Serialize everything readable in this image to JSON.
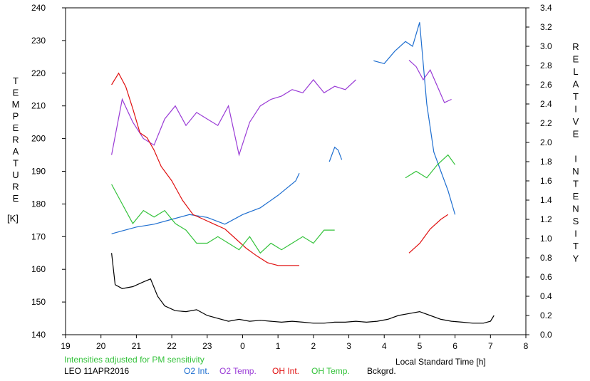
{
  "chart_data": {
    "type": "line",
    "left_axis_label": "TEMPERATURE",
    "left_axis_unit": "[K]",
    "right_axis_label": "RELATIVE INTENSITY",
    "xlabel": "Local Standard Time [h]",
    "note": "Intensities adjusted for PM sensitivity",
    "station_date": "LEO 11APR2016",
    "x_ticks": [
      "19",
      "21",
      "22",
      "23",
      "0",
      "1",
      "2",
      "3",
      "4",
      "5",
      "6",
      "7",
      "8"
    ],
    "x_range": [
      19,
      32
    ],
    "y_left_range": [
      140,
      240
    ],
    "y_left_ticks": [
      140,
      150,
      160,
      170,
      180,
      190,
      200,
      210,
      220,
      230,
      240
    ],
    "y_right_range": [
      0,
      3.4
    ],
    "y_right_ticks": [
      "0.0",
      "0.2",
      "0.4",
      "0.6",
      "0.8",
      "1.0",
      "1.2",
      "1.4",
      "1.6",
      "1.8",
      "2.0",
      "2.2",
      "2.4",
      "2.6",
      "2.8",
      "3.0",
      "3.2",
      "3.4"
    ],
    "grid": false,
    "series": [
      {
        "name": "O2 Int.",
        "axis": "right",
        "color": "#1f6fd0",
        "x": [
          20.3,
          20.6,
          21.0,
          21.5,
          22.0,
          22.5,
          23.0,
          23.5,
          24.0,
          24.5,
          25.0,
          25.5,
          25.6
        ],
        "y": [
          1.05,
          1.08,
          1.12,
          1.15,
          1.2,
          1.25,
          1.22,
          1.15,
          1.25,
          1.32,
          1.45,
          1.6,
          1.68
        ]
      },
      {
        "name": "O2 Int.",
        "axis": "right",
        "color": "#1f6fd0",
        "x": [
          26.45,
          26.6,
          26.7,
          26.8
        ],
        "y": [
          1.8,
          1.95,
          1.92,
          1.82
        ]
      },
      {
        "name": "O2 Int.",
        "axis": "right",
        "color": "#1f6fd0",
        "x": [
          27.7,
          28.0,
          28.3,
          28.6,
          28.8,
          29.0,
          29.2,
          29.4,
          29.6,
          29.8,
          30.0
        ],
        "y": [
          2.85,
          2.82,
          2.95,
          3.05,
          3.0,
          3.25,
          2.4,
          1.9,
          1.7,
          1.5,
          1.25
        ]
      },
      {
        "name": "O2 Temp.",
        "axis": "left",
        "color": "#9a3bd6",
        "x": [
          20.3,
          20.6,
          20.9,
          21.2,
          21.5,
          21.8,
          22.1,
          22.4,
          22.7,
          23.0,
          23.3,
          23.6,
          23.9,
          24.2,
          24.5,
          24.8,
          25.1,
          25.4,
          25.7,
          26.0,
          26.3,
          26.6,
          26.9,
          27.2
        ],
        "y": [
          195,
          212,
          205,
          200,
          198,
          206,
          210,
          204,
          208,
          206,
          204,
          210,
          195,
          205,
          210,
          212,
          213,
          215,
          214,
          218,
          214,
          216,
          215,
          218
        ]
      },
      {
        "name": "O2 Temp.",
        "axis": "left",
        "color": "#9a3bd6",
        "x": [
          28.7,
          28.9,
          29.1,
          29.3,
          29.5,
          29.7,
          29.9
        ],
        "y": [
          224,
          222,
          218,
          221,
          216,
          211,
          212
        ]
      },
      {
        "name": "OH Int.",
        "axis": "right",
        "color": "#e01010",
        "x": [
          20.3,
          20.5,
          20.7,
          20.9,
          21.1,
          21.3,
          21.5,
          21.7,
          22.0,
          22.3,
          22.6,
          22.9,
          23.2,
          23.5,
          23.8,
          24.1,
          24.4,
          24.7,
          25.0,
          25.3,
          25.6
        ],
        "y": [
          2.6,
          2.72,
          2.58,
          2.35,
          2.1,
          2.05,
          1.92,
          1.75,
          1.6,
          1.4,
          1.25,
          1.2,
          1.15,
          1.1,
          1.0,
          0.9,
          0.82,
          0.75,
          0.72,
          0.72,
          0.72
        ]
      },
      {
        "name": "OH Int.",
        "axis": "right",
        "color": "#e01010",
        "x": [
          28.7,
          29.0,
          29.3,
          29.6,
          29.8
        ],
        "y": [
          0.85,
          0.95,
          1.1,
          1.2,
          1.25
        ]
      },
      {
        "name": "OH Temp.",
        "axis": "left",
        "color": "#33c23a",
        "x": [
          20.3,
          20.6,
          20.9,
          21.2,
          21.5,
          21.8,
          22.1,
          22.4,
          22.7,
          23.0,
          23.3,
          23.6,
          23.9,
          24.2,
          24.5,
          24.8,
          25.1,
          25.4,
          25.7,
          26.0,
          26.3,
          26.6
        ],
        "y": [
          186,
          180,
          174,
          178,
          176,
          178,
          174,
          172,
          168,
          168,
          170,
          168,
          166,
          170,
          165,
          168,
          166,
          168,
          170,
          168,
          172,
          172
        ]
      },
      {
        "name": "OH Temp.",
        "axis": "left",
        "color": "#33c23a",
        "x": [
          28.6,
          28.9,
          29.2,
          29.5,
          29.8,
          30.0
        ],
        "y": [
          188,
          190,
          188,
          192,
          195,
          192
        ]
      },
      {
        "name": "Bckgrd.",
        "axis": "right",
        "color": "#000000",
        "x": [
          20.3,
          20.4,
          20.6,
          20.9,
          21.2,
          21.4,
          21.6,
          21.8,
          22.1,
          22.4,
          22.7,
          23.0,
          23.3,
          23.6,
          23.9,
          24.2,
          24.5,
          24.8,
          25.1,
          25.4,
          25.7,
          26.0,
          26.3,
          26.6,
          26.9,
          27.2,
          27.5,
          27.8,
          28.1,
          28.4,
          28.7,
          29.0,
          29.3,
          29.6,
          29.9,
          30.2,
          30.5,
          30.8,
          31.0,
          31.1
        ],
        "y": [
          0.85,
          0.52,
          0.48,
          0.5,
          0.55,
          0.58,
          0.4,
          0.3,
          0.25,
          0.24,
          0.26,
          0.2,
          0.17,
          0.14,
          0.16,
          0.14,
          0.15,
          0.14,
          0.13,
          0.14,
          0.13,
          0.12,
          0.12,
          0.13,
          0.13,
          0.14,
          0.13,
          0.14,
          0.16,
          0.2,
          0.22,
          0.24,
          0.2,
          0.16,
          0.14,
          0.13,
          0.12,
          0.12,
          0.14,
          0.2
        ]
      }
    ]
  },
  "legend": [
    {
      "label": "O2 Int.",
      "color": "#1f6fd0"
    },
    {
      "label": "O2 Temp.",
      "color": "#9a3bd6"
    },
    {
      "label": "OH Int.",
      "color": "#e01010"
    },
    {
      "label": "OH Temp.",
      "color": "#33c23a"
    },
    {
      "label": "Bckgrd.",
      "color": "#000000"
    }
  ]
}
